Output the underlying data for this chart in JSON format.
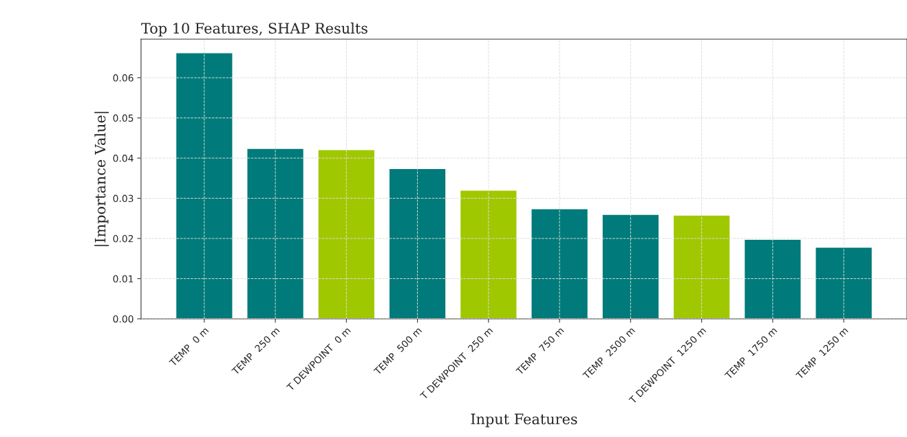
{
  "chart_data": {
    "type": "bar",
    "title": "Top 10 Features, SHAP Results",
    "xlabel": "Input Features",
    "ylabel": "|Importance Value|",
    "categories": [
      "TEMP  0 m",
      "TEMP  250 m",
      "T DEWPOINT  0 m",
      "TEMP  500 m",
      "T DEWPOINT  250 m",
      "TEMP  750 m",
      "TEMP  2500 m",
      "T DEWPOINT  1250 m",
      "TEMP  1750 m",
      "TEMP  1250 m"
    ],
    "values": [
      0.0662,
      0.0424,
      0.0421,
      0.0374,
      0.032,
      0.0274,
      0.026,
      0.0258,
      0.0198,
      0.0178
    ],
    "colors": [
      "#007a7a",
      "#007a7a",
      "#a0c800",
      "#007a7a",
      "#a0c800",
      "#007a7a",
      "#007a7a",
      "#a0c800",
      "#007a7a",
      "#007a7a"
    ],
    "ylim": [
      0,
      0.0696
    ],
    "yticks": [
      {
        "value": 0,
        "label": "0.00"
      },
      {
        "value": 0.01,
        "label": "0.01"
      },
      {
        "value": 0.02,
        "label": "0.02"
      },
      {
        "value": 0.03,
        "label": "0.03"
      },
      {
        "value": 0.04,
        "label": "0.04"
      },
      {
        "value": 0.05,
        "label": "0.05"
      },
      {
        "value": 0.06,
        "label": "0.06"
      }
    ],
    "grid": true
  }
}
